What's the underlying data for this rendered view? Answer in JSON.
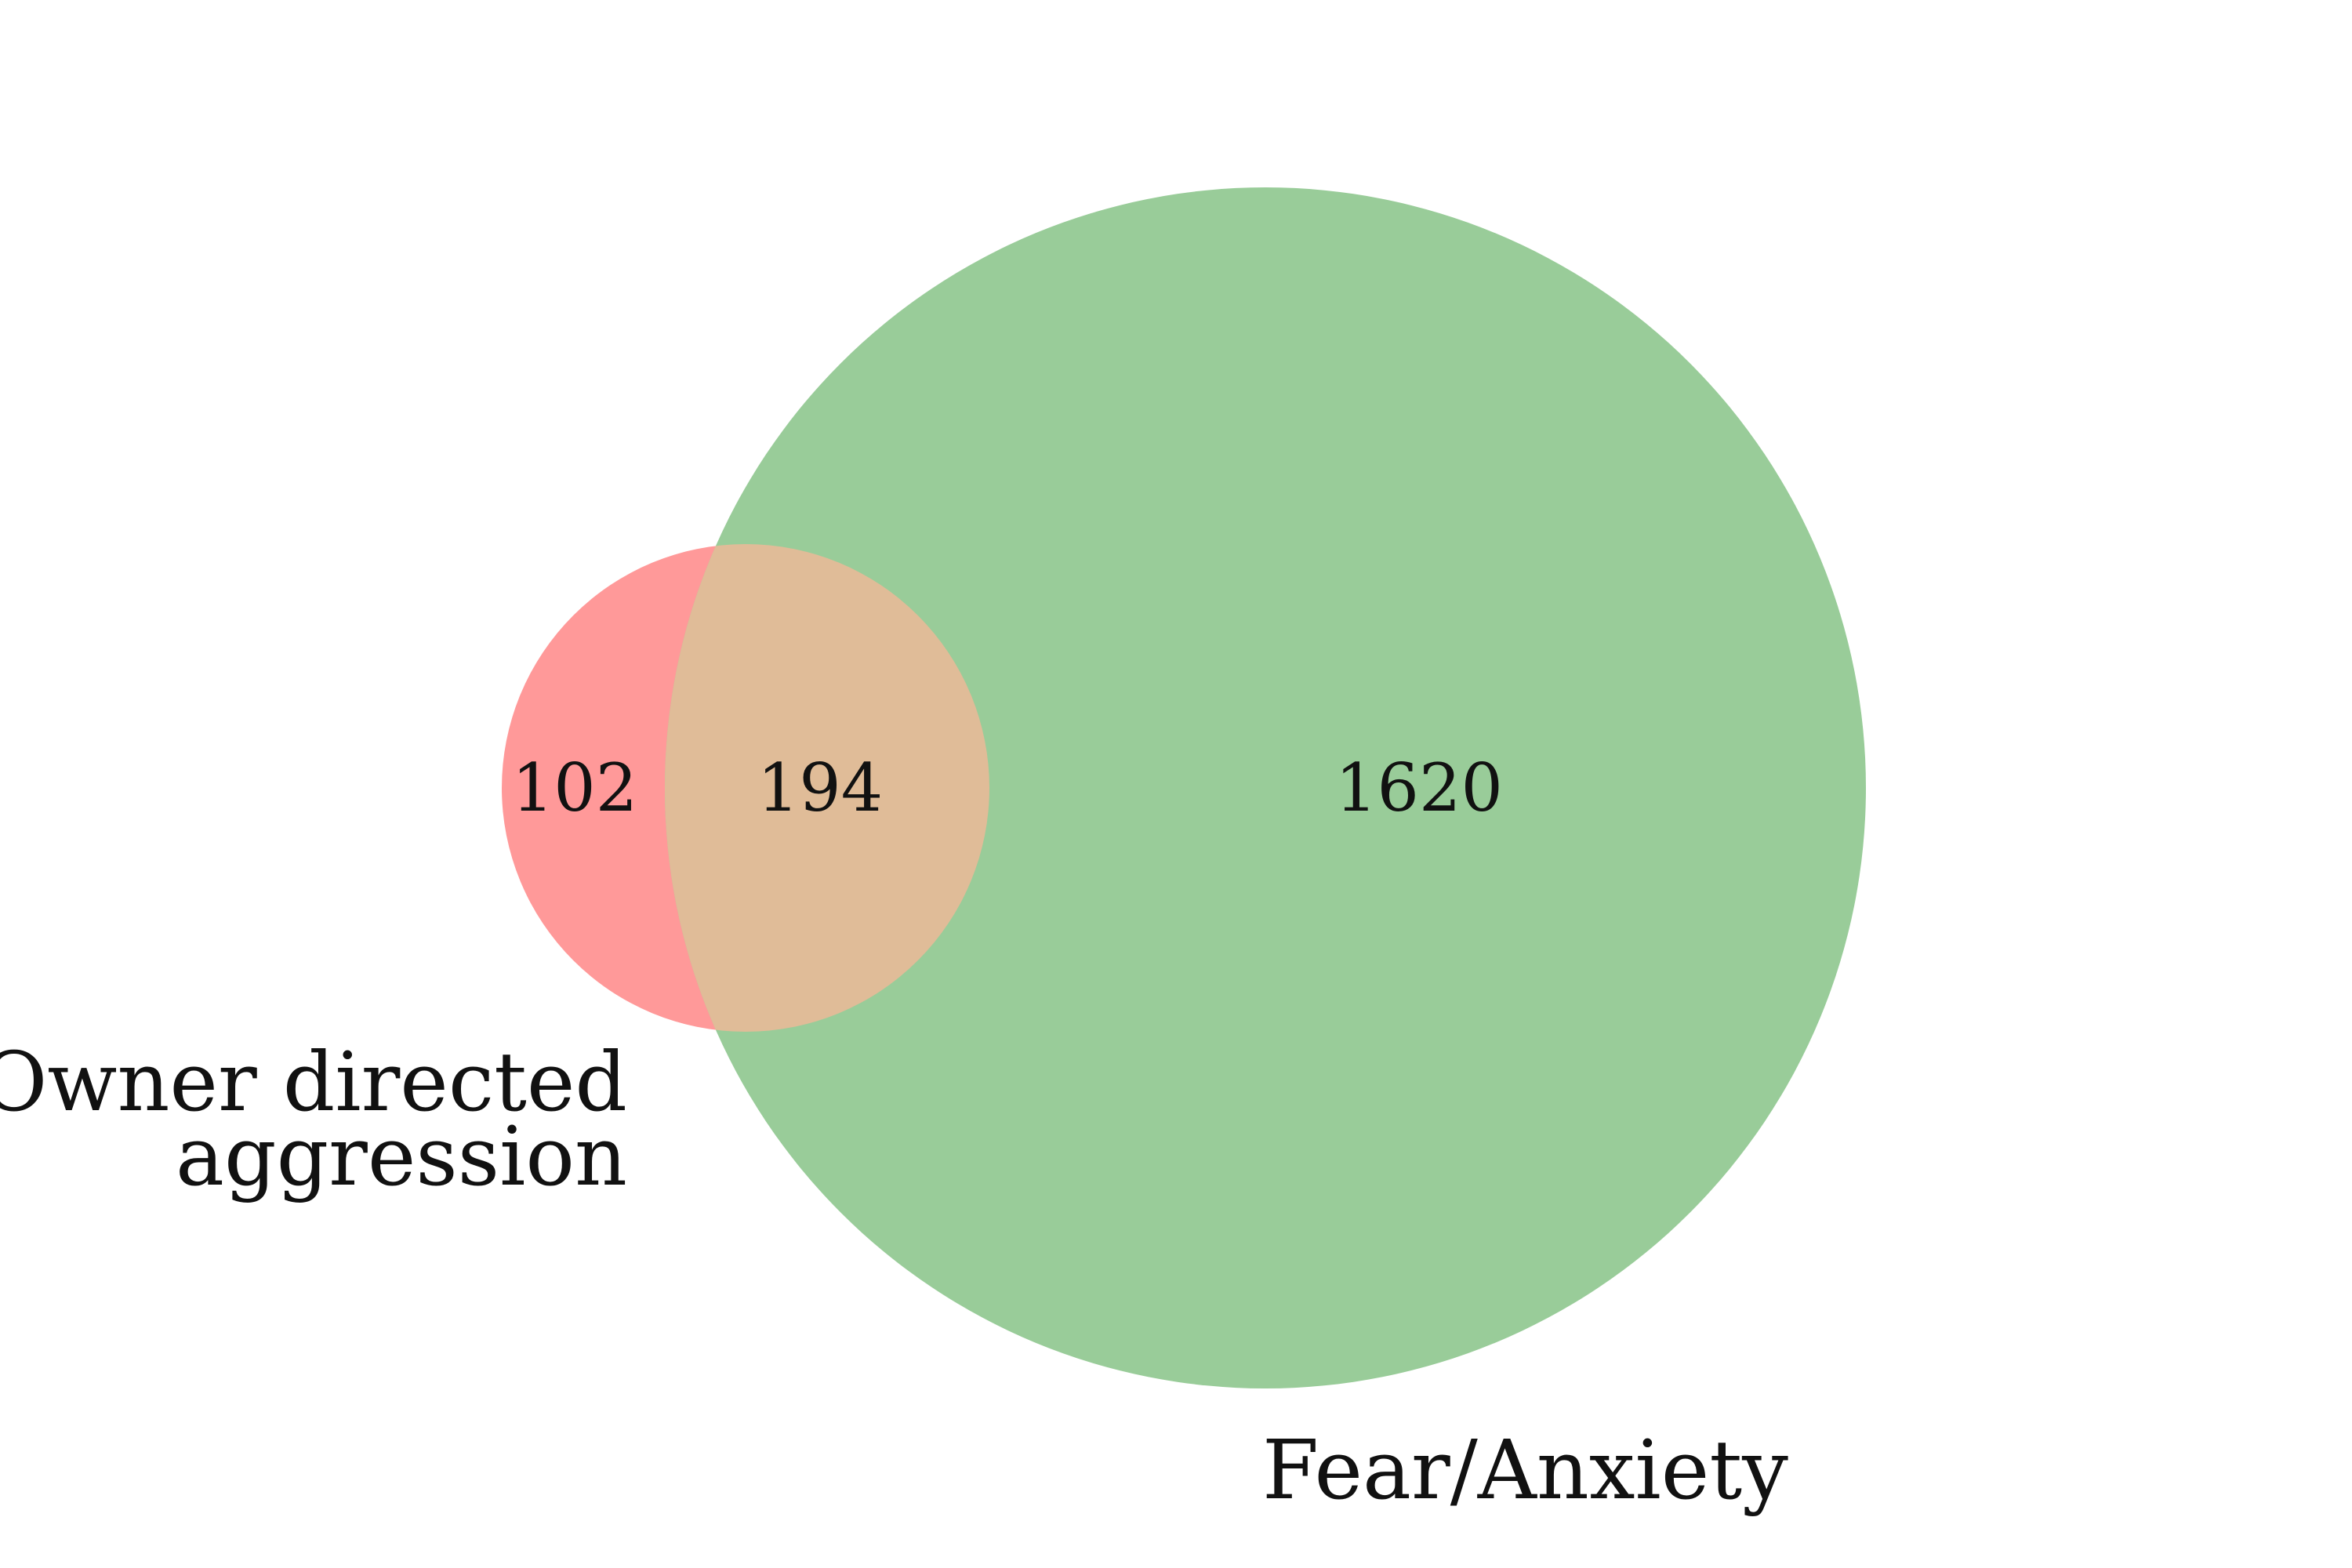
{
  "diagram": {
    "type": "venn2",
    "sets": [
      {
        "id": "A",
        "label_lines": [
          "Owner directed",
          "aggression"
        ],
        "color": "#ff9999",
        "only_count": "102"
      },
      {
        "id": "B",
        "label_lines": [
          "Fear/Anxiety"
        ],
        "color": "#99cc99",
        "only_count": "1620"
      }
    ],
    "intersection": {
      "count": "194",
      "color": "#e0bc98"
    }
  }
}
